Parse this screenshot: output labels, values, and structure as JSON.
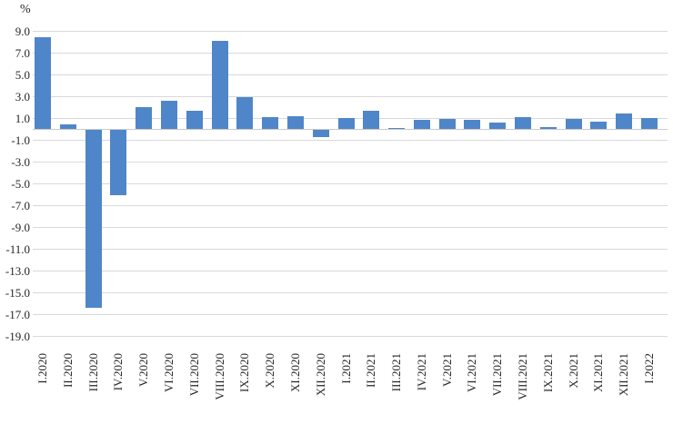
{
  "chart_data": {
    "type": "bar",
    "title": "",
    "xlabel": "",
    "ylabel": "%",
    "categories": [
      "I.2020",
      "II.2020",
      "III.2020",
      "IV.2020",
      "V.2020",
      "VI.2020",
      "VII.2020",
      "VIII.2020",
      "IX.2020",
      "X.2020",
      "XI.2020",
      "XII.2020",
      "I.2021",
      "II.2021",
      "III.2021",
      "IV.2021",
      "V.2021",
      "VI.2021",
      "VII.2021",
      "VIII.2021",
      "IX.2021",
      "X.2021",
      "XI.2021",
      "XII.2021",
      "I.2022"
    ],
    "values": [
      8.4,
      0.4,
      -16.3,
      -6.0,
      2.0,
      2.6,
      1.7,
      8.1,
      2.9,
      1.1,
      1.2,
      -0.7,
      1.0,
      1.7,
      0.1,
      0.8,
      0.9,
      0.8,
      0.6,
      1.1,
      0.2,
      0.9,
      0.7,
      1.4,
      1.0
    ],
    "ylim": [
      -19.0,
      9.0
    ],
    "ytick_values": [
      9,
      7,
      5,
      3,
      1,
      -1,
      -3,
      -5,
      -7,
      -9,
      -11,
      -13,
      -15,
      -17,
      -19
    ],
    "ytick_labels": [
      "9.0",
      "7.0",
      "5.0",
      "3.0",
      "1.0",
      "-1.0",
      "-3.0",
      "-5.0",
      "-7.0",
      "-9.0",
      "-11.0",
      "-13.0",
      "-15.0",
      "-17.0",
      "-19.0"
    ],
    "legend": [],
    "grid": "horizontal",
    "bar_color": "#4f86c9",
    "gridline_color": "#d9d9d9",
    "axis_line_color": "#c9c9c9",
    "text_color": "#262626"
  }
}
